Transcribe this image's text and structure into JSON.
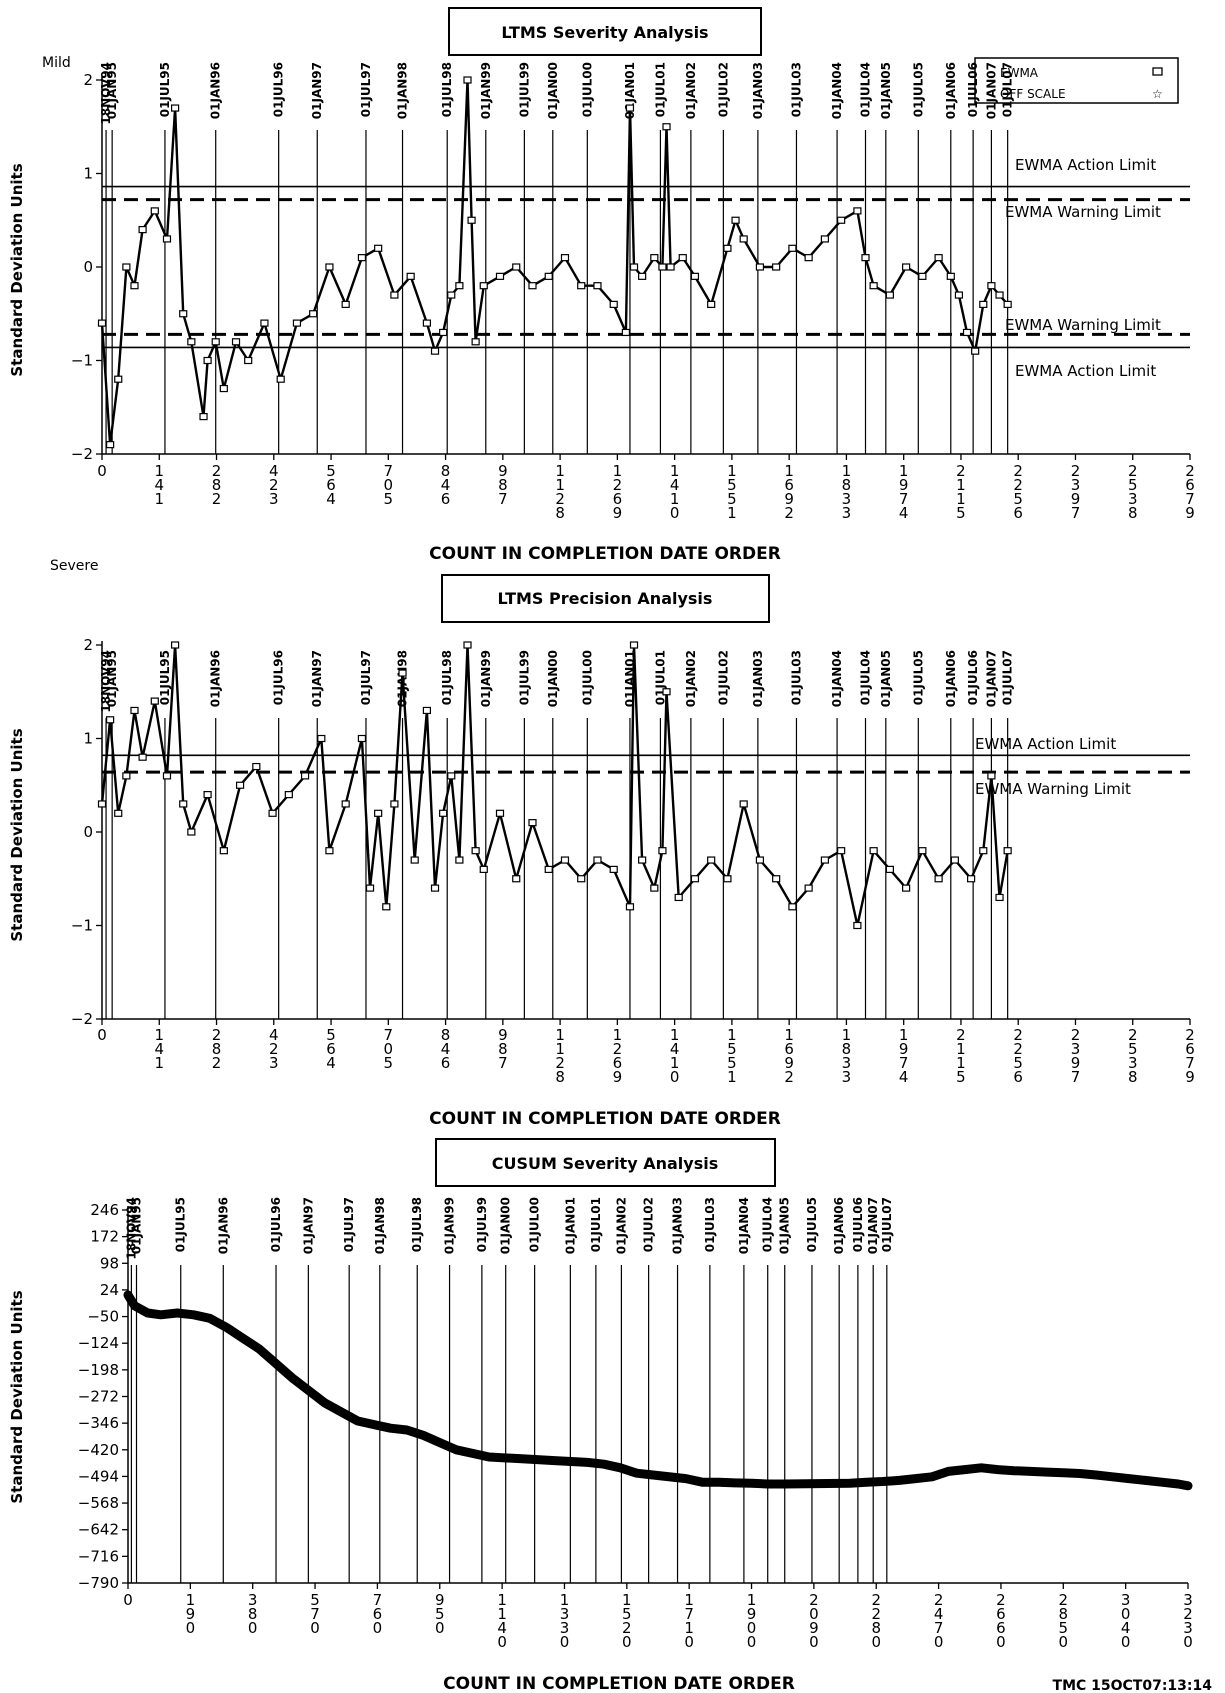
{
  "date_markers": [
    "18NOV94",
    "01JAN95",
    "01JUL95",
    "01JAN96",
    "01JUL96",
    "01JAN97",
    "01JUL97",
    "01JAN98",
    "01JUL98",
    "01JAN99",
    "01JUL99",
    "01JAN00",
    "01JUL00",
    "01JAN01",
    "01JUL01",
    "01JAN02",
    "01JUL02",
    "01JAN03",
    "01JUL03",
    "01JAN04",
    "01JUL04",
    "01JAN05",
    "01JUL05",
    "01JAN06",
    "01JUL06",
    "01JAN07",
    "01JUL07"
  ],
  "footer": "TMC  15OCT07:13:14",
  "chart_data": [
    {
      "type": "line",
      "title": "LTMS  Severity  Analysis",
      "corner_label": "Mild",
      "xlabel": "COUNT  IN  COMPLETION  DATE  ORDER",
      "ylabel": "Standard Deviation Units",
      "ylim": [
        -2,
        2
      ],
      "yticks": [
        "2",
        "1",
        "0",
        "−1",
        "−2"
      ],
      "xlim": [
        0,
        2679
      ],
      "xticks": [
        "0",
        "141",
        "282",
        "423",
        "564",
        "705",
        "846",
        "987",
        "1128",
        "1269",
        "1410",
        "1551",
        "1692",
        "1833",
        "1974",
        "2115",
        "2256",
        "2397",
        "2538",
        "2679"
      ],
      "date_positions": [
        10,
        25,
        155,
        280,
        435,
        530,
        650,
        740,
        850,
        945,
        1040,
        1110,
        1195,
        1300,
        1375,
        1450,
        1530,
        1615,
        1710,
        1810,
        1880,
        1930,
        2010,
        2090,
        2145,
        2190,
        2230
      ],
      "legend": [
        "EWMA",
        "OFF SCALE"
      ],
      "limits": [
        {
          "label": "EWMA Action Limit",
          "value": 0.86,
          "style": "solid"
        },
        {
          "label": "EWMA Warning Limit",
          "value": 0.72,
          "style": "dashed"
        },
        {
          "label": "EWMA Warning Limit",
          "value": -0.72,
          "style": "dashed"
        },
        {
          "label": "EWMA Action Limit",
          "value": -0.86,
          "style": "solid"
        }
      ],
      "series": [
        {
          "x": [
            0,
            20,
            40,
            60,
            80,
            100,
            130,
            160,
            180,
            200,
            220,
            250,
            260,
            280,
            300,
            330,
            360,
            400,
            440,
            480,
            520,
            560,
            600,
            640,
            680,
            720,
            760,
            800,
            820,
            840,
            860,
            880,
            900,
            910,
            920,
            940,
            980,
            1020,
            1060,
            1100,
            1140,
            1180,
            1220,
            1260,
            1290,
            1300,
            1310,
            1330,
            1360,
            1380,
            1390,
            1400,
            1430,
            1460,
            1500,
            1540,
            1560,
            1580,
            1620,
            1660,
            1700,
            1740,
            1780,
            1820,
            1860,
            1880,
            1900,
            1940,
            1980,
            2020,
            2060,
            2090,
            2110,
            2130,
            2150,
            2170,
            2190,
            2210,
            2230
          ],
          "values": [
            -0.6,
            -1.9,
            -1.2,
            0.0,
            -0.2,
            0.4,
            0.6,
            0.3,
            1.7,
            -0.5,
            -0.8,
            -1.6,
            -1.0,
            -0.8,
            -1.3,
            -0.8,
            -1.0,
            -0.6,
            -1.2,
            -0.6,
            -0.5,
            0.0,
            -0.4,
            0.1,
            0.2,
            -0.3,
            -0.1,
            -0.6,
            -0.9,
            -0.7,
            -0.3,
            -0.2,
            2.0,
            0.5,
            -0.8,
            -0.2,
            -0.1,
            0.0,
            -0.2,
            -0.1,
            0.1,
            -0.2,
            -0.2,
            -0.4,
            -0.7,
            1.7,
            0.0,
            -0.1,
            0.1,
            0.0,
            1.5,
            0.0,
            0.1,
            -0.1,
            -0.4,
            0.2,
            0.5,
            0.3,
            0.0,
            0.0,
            0.2,
            0.1,
            0.3,
            0.5,
            0.6,
            0.1,
            -0.2,
            -0.3,
            0.0,
            -0.1,
            0.1,
            -0.1,
            -0.3,
            -0.7,
            -0.9,
            -0.4,
            -0.2,
            -0.3,
            -0.4
          ]
        }
      ]
    },
    {
      "type": "line",
      "title": "LTMS  Precision  Analysis",
      "corner_label": "Severe",
      "xlabel": "COUNT  IN  COMPLETION  DATE  ORDER",
      "ylabel": "Standard Deviation Units",
      "ylim": [
        -2,
        2
      ],
      "yticks": [
        "2",
        "1",
        "0",
        "−1",
        "−2"
      ],
      "xlim": [
        0,
        2679
      ],
      "xticks": [
        "0",
        "141",
        "282",
        "423",
        "564",
        "705",
        "846",
        "987",
        "1128",
        "1269",
        "1410",
        "1551",
        "1692",
        "1833",
        "1974",
        "2115",
        "2256",
        "2397",
        "2538",
        "2679"
      ],
      "date_positions": [
        10,
        25,
        155,
        280,
        435,
        530,
        650,
        740,
        850,
        945,
        1040,
        1110,
        1195,
        1300,
        1375,
        1450,
        1530,
        1615,
        1710,
        1810,
        1880,
        1930,
        2010,
        2090,
        2145,
        2190,
        2230
      ],
      "limits": [
        {
          "label": "EWMA Action Limit",
          "value": 0.82,
          "style": "solid"
        },
        {
          "label": "EWMA Warning Limit",
          "value": 0.64,
          "style": "dashed"
        }
      ],
      "series": [
        {
          "x": [
            0,
            20,
            40,
            60,
            80,
            100,
            130,
            160,
            180,
            200,
            220,
            260,
            300,
            340,
            380,
            420,
            460,
            500,
            540,
            560,
            600,
            640,
            660,
            680,
            700,
            720,
            740,
            770,
            800,
            820,
            840,
            860,
            880,
            900,
            920,
            940,
            980,
            1020,
            1060,
            1100,
            1140,
            1180,
            1220,
            1260,
            1300,
            1310,
            1330,
            1360,
            1380,
            1390,
            1420,
            1460,
            1500,
            1540,
            1580,
            1620,
            1660,
            1700,
            1740,
            1780,
            1820,
            1860,
            1900,
            1940,
            1980,
            2020,
            2060,
            2100,
            2140,
            2170,
            2190,
            2210,
            2230
          ],
          "values": [
            0.3,
            1.2,
            0.2,
            0.6,
            1.3,
            0.8,
            1.4,
            0.6,
            2.0,
            0.3,
            0.0,
            0.4,
            -0.2,
            0.5,
            0.7,
            0.2,
            0.4,
            0.6,
            1.0,
            -0.2,
            0.3,
            1.0,
            -0.6,
            0.2,
            -0.8,
            0.3,
            1.7,
            -0.3,
            1.3,
            -0.6,
            0.2,
            0.6,
            -0.3,
            2.0,
            -0.2,
            -0.4,
            0.2,
            -0.5,
            0.1,
            -0.4,
            -0.3,
            -0.5,
            -0.3,
            -0.4,
            -0.8,
            2.0,
            -0.3,
            -0.6,
            -0.2,
            1.5,
            -0.7,
            -0.5,
            -0.3,
            -0.5,
            0.3,
            -0.3,
            -0.5,
            -0.8,
            -0.6,
            -0.3,
            -0.2,
            -1.0,
            -0.2,
            -0.4,
            -0.6,
            -0.2,
            -0.5,
            -0.3,
            -0.5,
            -0.2,
            0.6,
            -0.7,
            -0.2
          ]
        }
      ]
    },
    {
      "type": "line",
      "title": "CUSUM  Severity  Analysis",
      "xlabel": "COUNT  IN  COMPLETION  DATE  ORDER",
      "ylabel": "Standard Deviation Units",
      "ylim": [
        -790,
        246
      ],
      "yticks": [
        "246",
        "172",
        "98",
        "24",
        "−50",
        "−124",
        "−198",
        "−272",
        "−346",
        "−420",
        "−494",
        "−568",
        "−642",
        "−716",
        "−790"
      ],
      "xlim": [
        0,
        3230
      ],
      "xticks": [
        "0",
        "190",
        "380",
        "570",
        "760",
        "950",
        "1140",
        "1330",
        "1520",
        "1710",
        "1900",
        "2090",
        "2280",
        "2470",
        "2660",
        "2850",
        "3040",
        "3230"
      ],
      "date_positions": [
        10,
        25,
        155,
        280,
        435,
        530,
        650,
        740,
        850,
        945,
        1040,
        1110,
        1195,
        1300,
        1375,
        1450,
        1530,
        1615,
        1710,
        1810,
        1880,
        1930,
        2010,
        2090,
        2145,
        2190,
        2230
      ],
      "series": [
        {
          "x": [
            0,
            20,
            60,
            100,
            150,
            200,
            250,
            300,
            350,
            400,
            500,
            600,
            700,
            800,
            850,
            900,
            950,
            1000,
            1050,
            1100,
            1200,
            1300,
            1400,
            1450,
            1500,
            1550,
            1600,
            1700,
            1750,
            1800,
            1850,
            1900,
            1950,
            2000,
            2100,
            2200,
            2250,
            2300,
            2350,
            2400,
            2450,
            2500,
            2550,
            2600,
            2650,
            2700,
            2750,
            2800,
            2850,
            2900,
            2950,
            3000,
            3050,
            3100,
            3150,
            3200,
            3230
          ],
          "values": [
            10,
            -20,
            -40,
            -45,
            -40,
            -45,
            -55,
            -80,
            -110,
            -140,
            -220,
            -290,
            -340,
            -360,
            -365,
            -380,
            -400,
            -420,
            -430,
            -440,
            -445,
            -450,
            -455,
            -460,
            -470,
            -485,
            -490,
            -500,
            -510,
            -510,
            -512,
            -513,
            -515,
            -515,
            -514,
            -513,
            -510,
            -508,
            -505,
            -500,
            -495,
            -480,
            -475,
            -470,
            -475,
            -478,
            -480,
            -482,
            -484,
            -486,
            -490,
            -495,
            -500,
            -505,
            -510,
            -515,
            -520
          ]
        }
      ]
    }
  ]
}
